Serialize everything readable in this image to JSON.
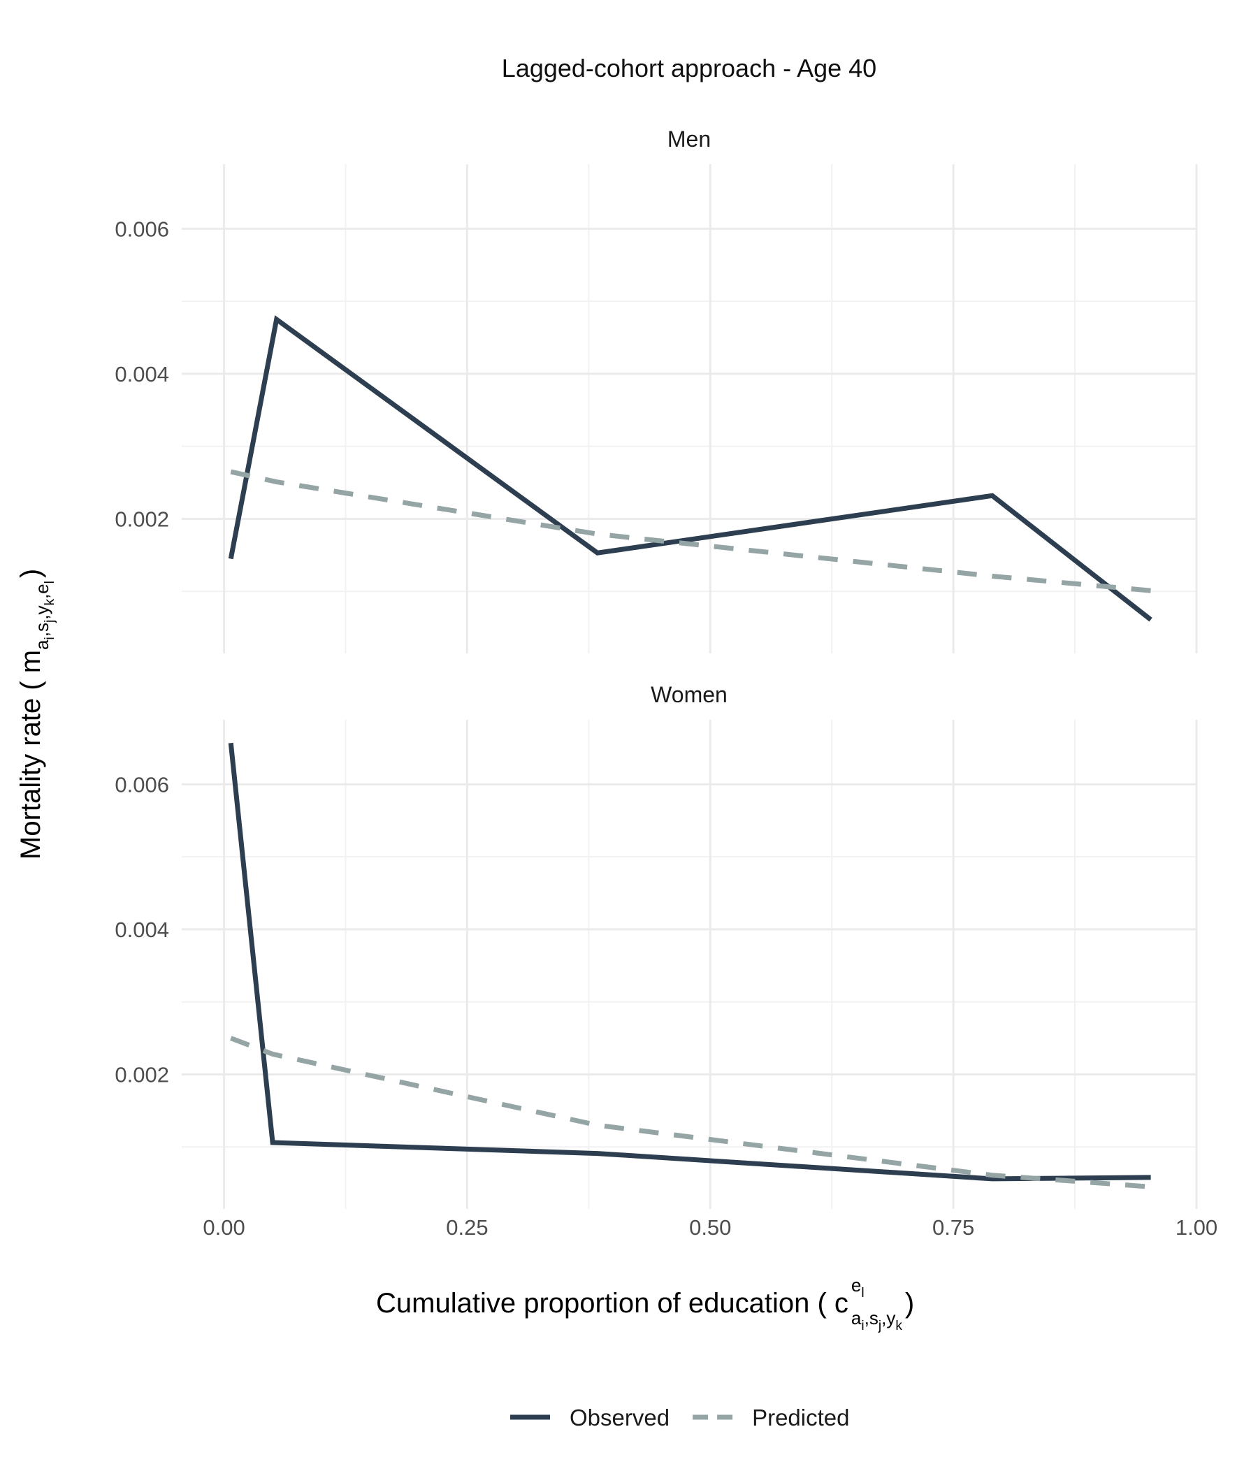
{
  "chart_data": {
    "type": "line",
    "title": "Lagged-cohort approach - Age 40",
    "xlabel": "Cumulative proportion of education ( c",
    "xlabel_suffix": " )",
    "xlabel_sup": "e",
    "xlabel_sup_sub": "l",
    "xlabel_sub_parts": [
      {
        "main": "a",
        "sub": "i"
      },
      {
        "main": ",s",
        "sub": "j"
      },
      {
        "main": ",y",
        "sub": "k"
      }
    ],
    "ylabel": "Mortality rate ( m",
    "ylabel_suffix": " )",
    "ylabel_sub_parts": [
      {
        "main": "a",
        "sub": "i"
      },
      {
        "main": ",s",
        "sub": "j"
      },
      {
        "main": ",y",
        "sub": "k"
      },
      {
        "main": ",e",
        "sub": "l"
      }
    ],
    "xlim": [
      -0.0435,
      1.0
    ],
    "ylim": [
      0.000145,
      0.00689
    ],
    "x_ticks": [
      0.0,
      0.25,
      0.5,
      0.75,
      1.0
    ],
    "x_tick_labels": [
      "0.00",
      "0.25",
      "0.50",
      "0.75",
      "1.00"
    ],
    "y_ticks": [
      0.002,
      0.004,
      0.006
    ],
    "y_tick_labels": [
      "0.002",
      "0.004",
      "0.006"
    ],
    "y_minor_ticks": [
      0.001,
      0.003,
      0.005
    ],
    "grid": true,
    "legend_position": "bottom",
    "panels": [
      {
        "name": "Men",
        "series": [
          {
            "name": "Observed",
            "color": "#2d3e50",
            "dash": "solid",
            "x": [
              0.007,
              0.054,
              0.384,
              0.79,
              0.953
            ],
            "y": [
              0.00145,
              0.00475,
              0.00153,
              0.00232,
              0.00061
            ]
          },
          {
            "name": "Predicted",
            "color": "#95a5a5",
            "dash": "dashed",
            "x": [
              0.007,
              0.054,
              0.384,
              0.79,
              0.953
            ],
            "y": [
              0.00265,
              0.00251,
              0.00179,
              0.00121,
              0.00101
            ]
          }
        ]
      },
      {
        "name": "Women",
        "series": [
          {
            "name": "Observed",
            "color": "#2d3e50",
            "dash": "solid",
            "x": [
              0.007,
              0.05,
              0.384,
              0.79,
              0.953
            ],
            "y": [
              0.00657,
              0.00106,
              0.00091,
              0.00056,
              0.00058
            ]
          },
          {
            "name": "Predicted",
            "color": "#95a5a5",
            "dash": "dashed",
            "x": [
              0.007,
              0.05,
              0.384,
              0.79,
              0.953
            ],
            "y": [
              0.0025,
              0.00228,
              0.0013,
              0.00061,
              0.00045
            ]
          }
        ]
      }
    ],
    "legend": [
      {
        "label": "Observed",
        "color": "#2d3e50",
        "dash": "solid"
      },
      {
        "label": "Predicted",
        "color": "#95a5a5",
        "dash": "dashed"
      }
    ]
  }
}
